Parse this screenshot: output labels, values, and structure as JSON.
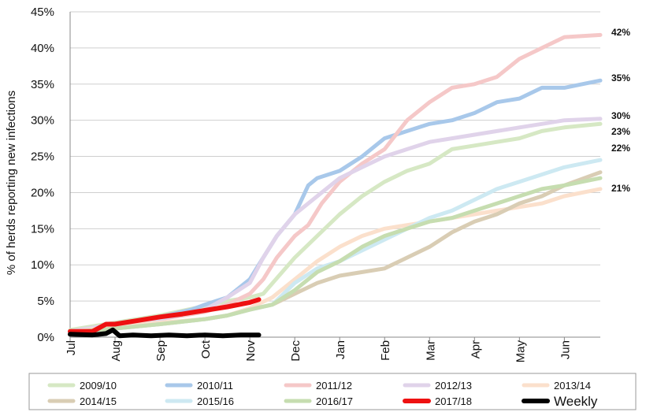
{
  "chart_data": {
    "type": "line",
    "ylabel": "% of herds reporting new infections",
    "xlabel": "",
    "title": "",
    "y_ticks": [
      "0%",
      "5%",
      "10%",
      "15%",
      "20%",
      "25%",
      "30%",
      "35%",
      "40%",
      "45%"
    ],
    "ylim": [
      0,
      45
    ],
    "x_ticks": [
      "Jul",
      "Aug",
      "Sep",
      "Oct",
      "Nov",
      "Dec",
      "Jan",
      "Feb",
      "Mar",
      "Apr",
      "May",
      "Jun"
    ],
    "xlim": [
      0,
      11.8
    ],
    "grid": "horizontal",
    "legend_position": "bottom",
    "end_labels": [
      "42%",
      "35%",
      "30%",
      "23%",
      "22%",
      "21%"
    ],
    "series": [
      {
        "name": "2009/10",
        "color": "#d6e8c4",
        "x": [
          0,
          1,
          2,
          3,
          3.5,
          4,
          4.3,
          5,
          5.5,
          6,
          6.5,
          7,
          7.5,
          8,
          8.5,
          9,
          9.5,
          10,
          10.5,
          11,
          11.8
        ],
        "y": [
          1,
          2,
          3,
          4.3,
          5,
          5.5,
          6,
          11,
          14,
          17,
          19.5,
          21.5,
          23,
          24,
          26,
          26.5,
          27,
          27.5,
          28.5,
          29,
          29.5
        ]
      },
      {
        "name": "2010/11",
        "color": "#a8c8ea",
        "x": [
          0,
          1,
          2,
          2.7,
          3,
          3.5,
          4,
          4.3,
          4.6,
          5,
          5.3,
          5.5,
          6,
          6.5,
          7,
          7.5,
          8,
          8.5,
          9,
          9.5,
          10,
          10.5,
          11,
          11.8
        ],
        "y": [
          0.8,
          1.8,
          2.8,
          3.8,
          4.5,
          5.5,
          8,
          11,
          14,
          17,
          21,
          22,
          23,
          25,
          27.5,
          28.5,
          29.5,
          30,
          31,
          32.5,
          33,
          34.5,
          34.5,
          35.5
        ]
      },
      {
        "name": "2011/12",
        "color": "#f5c8c8",
        "x": [
          0,
          1,
          2,
          3,
          3.5,
          4,
          4.3,
          4.6,
          5,
          5.3,
          5.6,
          6,
          6.5,
          7,
          7.5,
          8,
          8.5,
          9,
          9.5,
          10,
          10.5,
          11,
          11.8
        ],
        "y": [
          0.8,
          1.8,
          2.5,
          3.5,
          4.5,
          6,
          8,
          11,
          14,
          15.5,
          18.5,
          21.5,
          24,
          26,
          30,
          32.5,
          34.5,
          35,
          36,
          38.5,
          40,
          41.5,
          41.8
        ]
      },
      {
        "name": "2012/13",
        "color": "#e0d3ea",
        "x": [
          0,
          1,
          2,
          3,
          3.5,
          4,
          4.3,
          4.6,
          5,
          5.5,
          6,
          6.5,
          7,
          7.5,
          8,
          8.5,
          9,
          9.5,
          10,
          10.5,
          11,
          11.8
        ],
        "y": [
          0.8,
          1.8,
          2.5,
          3.8,
          5.5,
          7.5,
          11,
          14,
          17,
          19.5,
          22,
          23.5,
          25,
          26,
          27,
          27.5,
          28,
          28.5,
          29,
          29.5,
          30,
          30.2
        ]
      },
      {
        "name": "2013/14",
        "color": "#fbe0cc",
        "x": [
          0,
          1,
          2,
          3,
          3.5,
          4,
          4.5,
          5,
          5.5,
          6,
          6.5,
          7,
          7.5,
          8,
          8.5,
          9,
          9.5,
          10,
          10.5,
          11,
          11.8
        ],
        "y": [
          0.7,
          1.5,
          2,
          2.5,
          3,
          4,
          5.5,
          8,
          10.5,
          12.5,
          14,
          15,
          15.5,
          16,
          16.5,
          17,
          17.5,
          18,
          18.5,
          19.5,
          20.5
        ]
      },
      {
        "name": "2014/15",
        "color": "#d9cdb4",
        "x": [
          0,
          1,
          2,
          3,
          3.5,
          4,
          4.5,
          5,
          5.5,
          6,
          6.5,
          7,
          7.5,
          8,
          8.5,
          9,
          9.5,
          10,
          10.5,
          11,
          11.8
        ],
        "y": [
          0.7,
          1.2,
          1.8,
          2.5,
          3,
          3.8,
          4.5,
          6,
          7.5,
          8.5,
          9,
          9.5,
          11,
          12.5,
          14.5,
          16,
          17,
          18.5,
          19.5,
          21,
          22.8
        ]
      },
      {
        "name": "2015/16",
        "color": "#cde9f2",
        "x": [
          0,
          1,
          2,
          3,
          3.5,
          4,
          4.5,
          5,
          5.5,
          6,
          6.5,
          7,
          7.5,
          8,
          8.5,
          9,
          9.5,
          10,
          10.5,
          11,
          11.8
        ],
        "y": [
          0.7,
          1.2,
          1.8,
          2.5,
          3,
          3.8,
          4.5,
          7.5,
          9.5,
          10.5,
          12,
          13.5,
          15,
          16.5,
          17.5,
          19,
          20.5,
          21.5,
          22.5,
          23.5,
          24.5
        ]
      },
      {
        "name": "2016/17",
        "color": "#c6ddb0",
        "x": [
          0,
          1,
          2,
          3,
          3.5,
          4,
          4.5,
          5,
          5.5,
          6,
          6.5,
          7,
          7.5,
          8,
          8.5,
          9,
          9.5,
          10,
          10.5,
          11,
          11.8
        ],
        "y": [
          0.7,
          1.2,
          1.8,
          2.5,
          3,
          3.8,
          4.5,
          6.5,
          9,
          10.5,
          12.5,
          14,
          15,
          16,
          16.5,
          17.5,
          18.5,
          19.5,
          20.5,
          21,
          22
        ]
      },
      {
        "name": "2017/18",
        "color": "#ee1111",
        "x": [
          0,
          0.5,
          0.8,
          1,
          1.5,
          2,
          2.5,
          3,
          3.5,
          4,
          4.2
        ],
        "y": [
          0.8,
          0.8,
          1.8,
          1.8,
          2.3,
          2.8,
          3.2,
          3.7,
          4.2,
          4.8,
          5.2
        ]
      },
      {
        "name": "Weekly",
        "color": "#000000",
        "x": [
          0,
          0.5,
          0.8,
          0.95,
          1.1,
          1.4,
          1.8,
          2.2,
          2.6,
          3,
          3.4,
          3.8,
          4.2
        ],
        "y": [
          0.4,
          0.3,
          0.5,
          1.0,
          0.2,
          0.3,
          0.2,
          0.3,
          0.2,
          0.3,
          0.2,
          0.3,
          0.3
        ]
      }
    ]
  }
}
